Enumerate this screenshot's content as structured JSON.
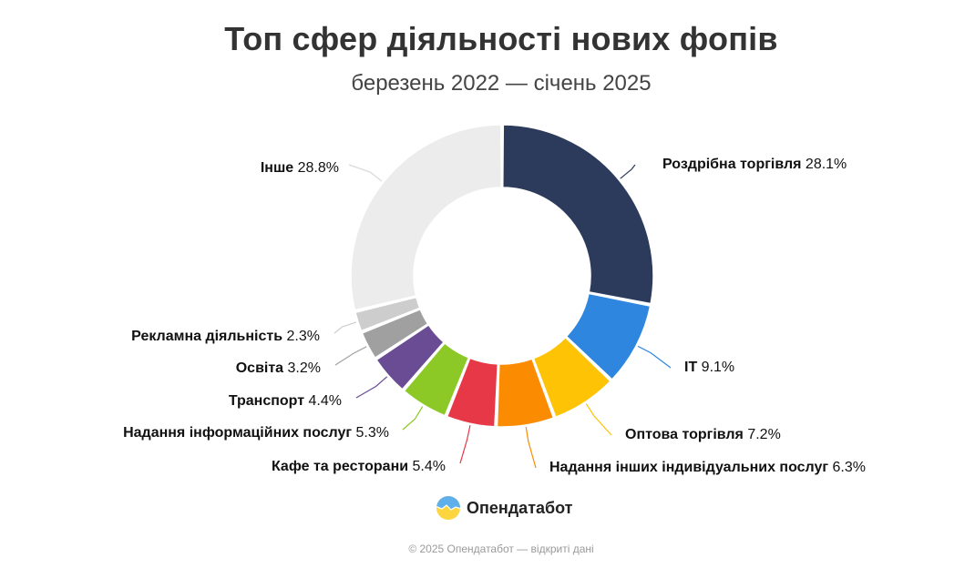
{
  "header": {
    "title": "Топ сфер діяльності нових фопів",
    "subtitle": "березень 2022 — січень 2025"
  },
  "chart_data": {
    "type": "pie",
    "variant": "donut",
    "title": "Топ сфер діяльності нових фопів",
    "subtitle": "березень 2022 — січень 2025",
    "unit": "%",
    "slices": [
      {
        "label": "Роздрібна торгівля",
        "value": 28.1,
        "value_text": "28.1%",
        "color": "#2c3a5c"
      },
      {
        "label": "IT",
        "value": 9.1,
        "value_text": "9.1%",
        "color": "#2e86de"
      },
      {
        "label": "Оптова торгівля",
        "value": 7.2,
        "value_text": "7.2%",
        "color": "#fdc304"
      },
      {
        "label": "Надання інших індивідуальних послуг",
        "value": 6.3,
        "value_text": "6.3%",
        "color": "#fb8b00"
      },
      {
        "label": "Кафе та ресторани",
        "value": 5.4,
        "value_text": "5.4%",
        "color": "#e63847"
      },
      {
        "label": "Надання інформаційних послуг",
        "value": 5.3,
        "value_text": "5.3%",
        "color": "#8cc926"
      },
      {
        "label": "Транспорт",
        "value": 4.4,
        "value_text": "4.4%",
        "color": "#6a4c94"
      },
      {
        "label": "Освіта",
        "value": 3.2,
        "value_text": "3.2%",
        "color": "#a0a0a0"
      },
      {
        "label": "Рекламна діяльність",
        "value": 2.3,
        "value_text": "2.3%",
        "color": "#cdcdcd"
      },
      {
        "label": "Інше",
        "value": 28.8,
        "value_text": "28.8%",
        "color": "#ececec"
      }
    ]
  },
  "brand": {
    "name": "Опендатабот",
    "logo_icon": "opendatabot-logo-icon"
  },
  "footer": {
    "text": "© 2025 Опендатабот — відкриті дані"
  }
}
